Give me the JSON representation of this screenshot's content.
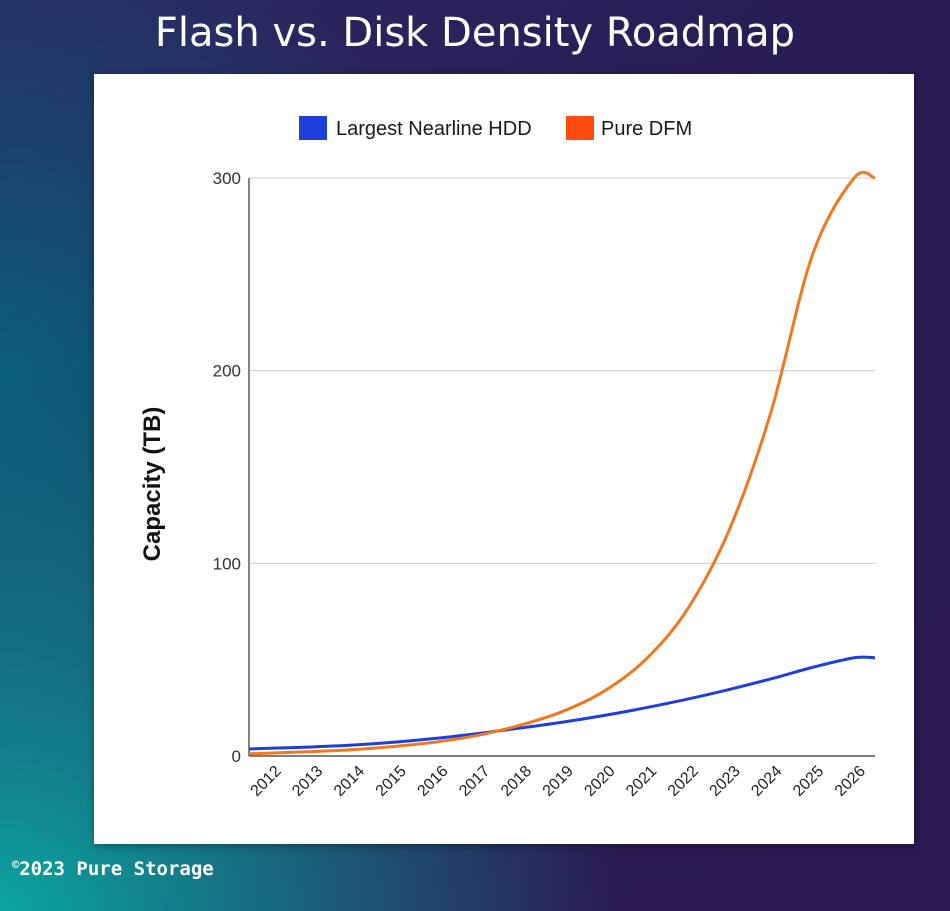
{
  "title": "Flash vs. Disk Density Roadmap",
  "footer": {
    "symbol": "©",
    "text": "2023 Pure Storage"
  },
  "colors": {
    "hdd": "#1f3fdb",
    "dfm": "#f07820",
    "dfm_legend": "#ff4a10"
  },
  "chart_data": {
    "type": "line",
    "ylabel": "Capacity (TB)",
    "xlabel": "",
    "ylim": [
      0,
      300
    ],
    "yticks": [
      "0",
      "100",
      "200",
      "300"
    ],
    "grid": true,
    "legend_position": "top",
    "categories": [
      "2012",
      "2013",
      "2014",
      "2015",
      "2016",
      "2017",
      "2018",
      "2019",
      "2020",
      "2021",
      "2022",
      "2023",
      "2024",
      "2025",
      "2026"
    ],
    "series": [
      {
        "name": "Largest Nearline HDD",
        "values": [
          4,
          4.7,
          5.7,
          7.2,
          9.2,
          11.7,
          14.5,
          17.5,
          21,
          25,
          29.5,
          34.5,
          40,
          46,
          51
        ]
      },
      {
        "name": "Pure DFM",
        "values": [
          1.5,
          2.3,
          3.3,
          5,
          7.3,
          10.8,
          16,
          23,
          33.5,
          50,
          76,
          117,
          178,
          260,
          300
        ]
      }
    ]
  }
}
